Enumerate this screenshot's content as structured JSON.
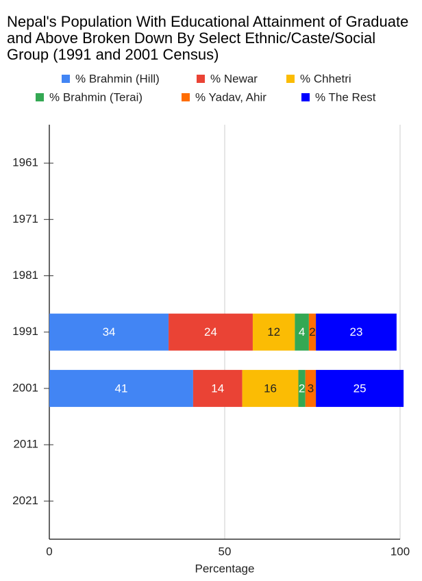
{
  "chart_data": {
    "type": "stacked-bar-horizontal",
    "title": "Nepal's Population With Educational Attainment of Graduate and Above Broken Down By Select Ethnic/Caste/Social Group (1991 and 2001 Census)",
    "x_label": "Percentage",
    "categories": [
      "1961",
      "1971",
      "1981",
      "1991",
      "2001",
      "2011",
      "2021"
    ],
    "series": [
      {
        "name": "% Brahmin (Hill)",
        "color": "#4285f4",
        "values": [
          null,
          null,
          null,
          34,
          41,
          null,
          null
        ]
      },
      {
        "name": "% Newar",
        "color": "#ea4335",
        "values": [
          null,
          null,
          null,
          24,
          14,
          null,
          null
        ]
      },
      {
        "name": "% Chhetri",
        "color": "#fbbc04",
        "values": [
          null,
          null,
          null,
          12,
          16,
          null,
          null
        ]
      },
      {
        "name": "% Brahmin (Terai)",
        "color": "#34a853",
        "values": [
          null,
          null,
          null,
          4,
          2,
          null,
          null
        ]
      },
      {
        "name": "% Yadav, Ahir",
        "color": "#ff6d01",
        "values": [
          null,
          null,
          null,
          2,
          3,
          null,
          null
        ]
      },
      {
        "name": "% The Rest",
        "color": "#0000ff",
        "values": [
          null,
          null,
          null,
          23,
          25,
          null,
          null
        ]
      }
    ],
    "xlim": [
      0,
      100
    ],
    "xticks": [
      0,
      50,
      100
    ],
    "grid": true,
    "legend": "top"
  }
}
